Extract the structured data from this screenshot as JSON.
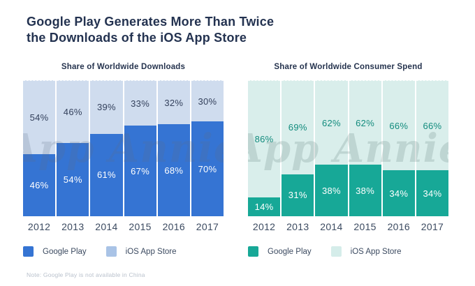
{
  "header": {
    "title_line1": "Google Play Generates More Than Twice",
    "title_line2": "the Downloads of the iOS App Store"
  },
  "watermark": "App Annie",
  "note": "Note: Google Play is not available in China",
  "chart_data": [
    {
      "type": "bar",
      "subtype": "stacked-100-percent",
      "title": "Share of Worldwide Downloads",
      "categories": [
        "2012",
        "2013",
        "2014",
        "2015",
        "2016",
        "2017"
      ],
      "series": [
        {
          "name": "Google Play",
          "values": [
            46,
            54,
            61,
            67,
            68,
            70
          ],
          "color": "#3574d3",
          "label_color": "#ffffff",
          "position": "bottom"
        },
        {
          "name": "iOS App Store",
          "values": [
            54,
            46,
            39,
            33,
            32,
            30
          ],
          "color": "#cfdcee",
          "label_color": "#34415c",
          "position": "top"
        }
      ],
      "ylim": [
        0,
        100
      ],
      "grid": false,
      "legend_position": "bottom-left",
      "legend": [
        {
          "label": "Google Play",
          "color": "#3574d3"
        },
        {
          "label": "iOS App Store",
          "color": "#a9c3e6"
        }
      ]
    },
    {
      "type": "bar",
      "subtype": "stacked-100-percent",
      "title": "Share of Worldwide Consumer Spend",
      "categories": [
        "2012",
        "2013",
        "2014",
        "2015",
        "2016",
        "2017"
      ],
      "series": [
        {
          "name": "Google Play",
          "values": [
            14,
            31,
            38,
            38,
            34,
            34
          ],
          "color": "#17a897",
          "label_color": "#ffffff",
          "position": "bottom"
        },
        {
          "name": "iOS App Store",
          "values": [
            86,
            69,
            62,
            62,
            66,
            66
          ],
          "color": "#d9eeeb",
          "label_color": "#128b7d",
          "position": "top"
        }
      ],
      "ylim": [
        0,
        100
      ],
      "grid": false,
      "legend_position": "bottom-left",
      "legend": [
        {
          "label": "Google Play",
          "color": "#17a897"
        },
        {
          "label": "iOS App Store",
          "color": "#d5edea"
        }
      ]
    }
  ]
}
